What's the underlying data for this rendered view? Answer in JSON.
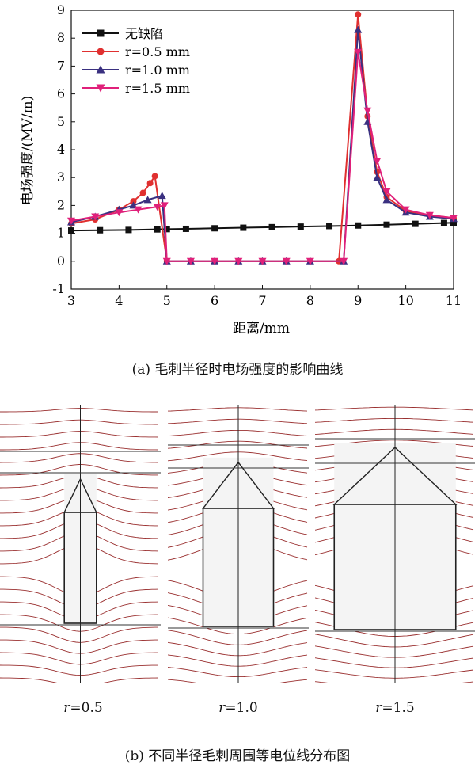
{
  "chart_data": {
    "type": "line",
    "xlabel": "距离/mm",
    "ylabel": "电场强度/(MV/m)",
    "xlim": [
      3,
      11
    ],
    "ylim": [
      -1,
      9
    ],
    "xticks": [
      "3",
      "4",
      "5",
      "6",
      "7",
      "8",
      "9",
      "10",
      "11"
    ],
    "yticks": [
      "-1",
      "0",
      "1",
      "2",
      "3",
      "4",
      "5",
      "6",
      "7",
      "8",
      "9"
    ],
    "grid": false,
    "legend": "top-left",
    "series": [
      {
        "name": "无缺陷",
        "color": "#111111",
        "marker": "square",
        "x": [
          3,
          3.6,
          4.2,
          4.8,
          5,
          5.4,
          6,
          6.6,
          7.2,
          7.8,
          8.4,
          9,
          9.6,
          10.2,
          10.8,
          11
        ],
        "y": [
          1.1,
          1.11,
          1.12,
          1.14,
          1.15,
          1.16,
          1.18,
          1.2,
          1.22,
          1.24,
          1.26,
          1.28,
          1.31,
          1.34,
          1.37,
          1.38
        ]
      },
      {
        "name": "r=0.5 mm",
        "color": "#e03030",
        "marker": "circle",
        "x": [
          3,
          3.5,
          4,
          4.3,
          4.5,
          4.65,
          4.75,
          5,
          5.5,
          6,
          6.5,
          7,
          7.5,
          8,
          8.6,
          9,
          9.2,
          9.4,
          9.6,
          10,
          10.5,
          11
        ],
        "y": [
          1.35,
          1.5,
          1.85,
          2.15,
          2.45,
          2.8,
          3.05,
          0,
          0,
          0,
          0,
          0,
          0,
          0,
          0,
          8.85,
          5.2,
          3.2,
          2.3,
          1.8,
          1.65,
          1.55
        ]
      },
      {
        "name": "r=1.0 mm",
        "color": "#3a3080",
        "marker": "triangle-up",
        "x": [
          3,
          3.5,
          4,
          4.3,
          4.6,
          4.9,
          5,
          5.5,
          6,
          6.5,
          7,
          7.5,
          8,
          8.7,
          9,
          9.2,
          9.4,
          9.6,
          10,
          10.5,
          11
        ],
        "y": [
          1.4,
          1.6,
          1.85,
          2.0,
          2.2,
          2.35,
          0,
          0,
          0,
          0,
          0,
          0,
          0,
          0,
          8.3,
          5.0,
          3.0,
          2.2,
          1.75,
          1.6,
          1.52
        ]
      },
      {
        "name": "r=1.5 mm",
        "color": "#e0207a",
        "marker": "triangle-down",
        "x": [
          3,
          3.5,
          4,
          4.4,
          4.8,
          4.95,
          5,
          5.5,
          6,
          6.5,
          7,
          7.5,
          8,
          8.7,
          9,
          9.2,
          9.4,
          9.6,
          10,
          10.5,
          11
        ],
        "y": [
          1.45,
          1.6,
          1.75,
          1.85,
          1.95,
          2.0,
          0,
          0,
          0,
          0,
          0,
          0,
          0,
          0,
          7.5,
          5.4,
          3.6,
          2.5,
          1.85,
          1.65,
          1.55
        ]
      }
    ]
  },
  "captions": {
    "a": "(a) 毛刺半径时电场强度的影响曲线",
    "b": "(b) 不同半径毛刺周围等电位线分布图"
  },
  "panels": [
    {
      "var": "r",
      "value": "=0.5",
      "half_width": 0.1,
      "roof_height": 0.45
    },
    {
      "var": "r",
      "value": "=1.0",
      "half_width": 0.25,
      "roof_height": 0.72
    },
    {
      "var": "r",
      "value": "=1.5",
      "half_width": 0.38,
      "roof_height": 0.95
    }
  ]
}
